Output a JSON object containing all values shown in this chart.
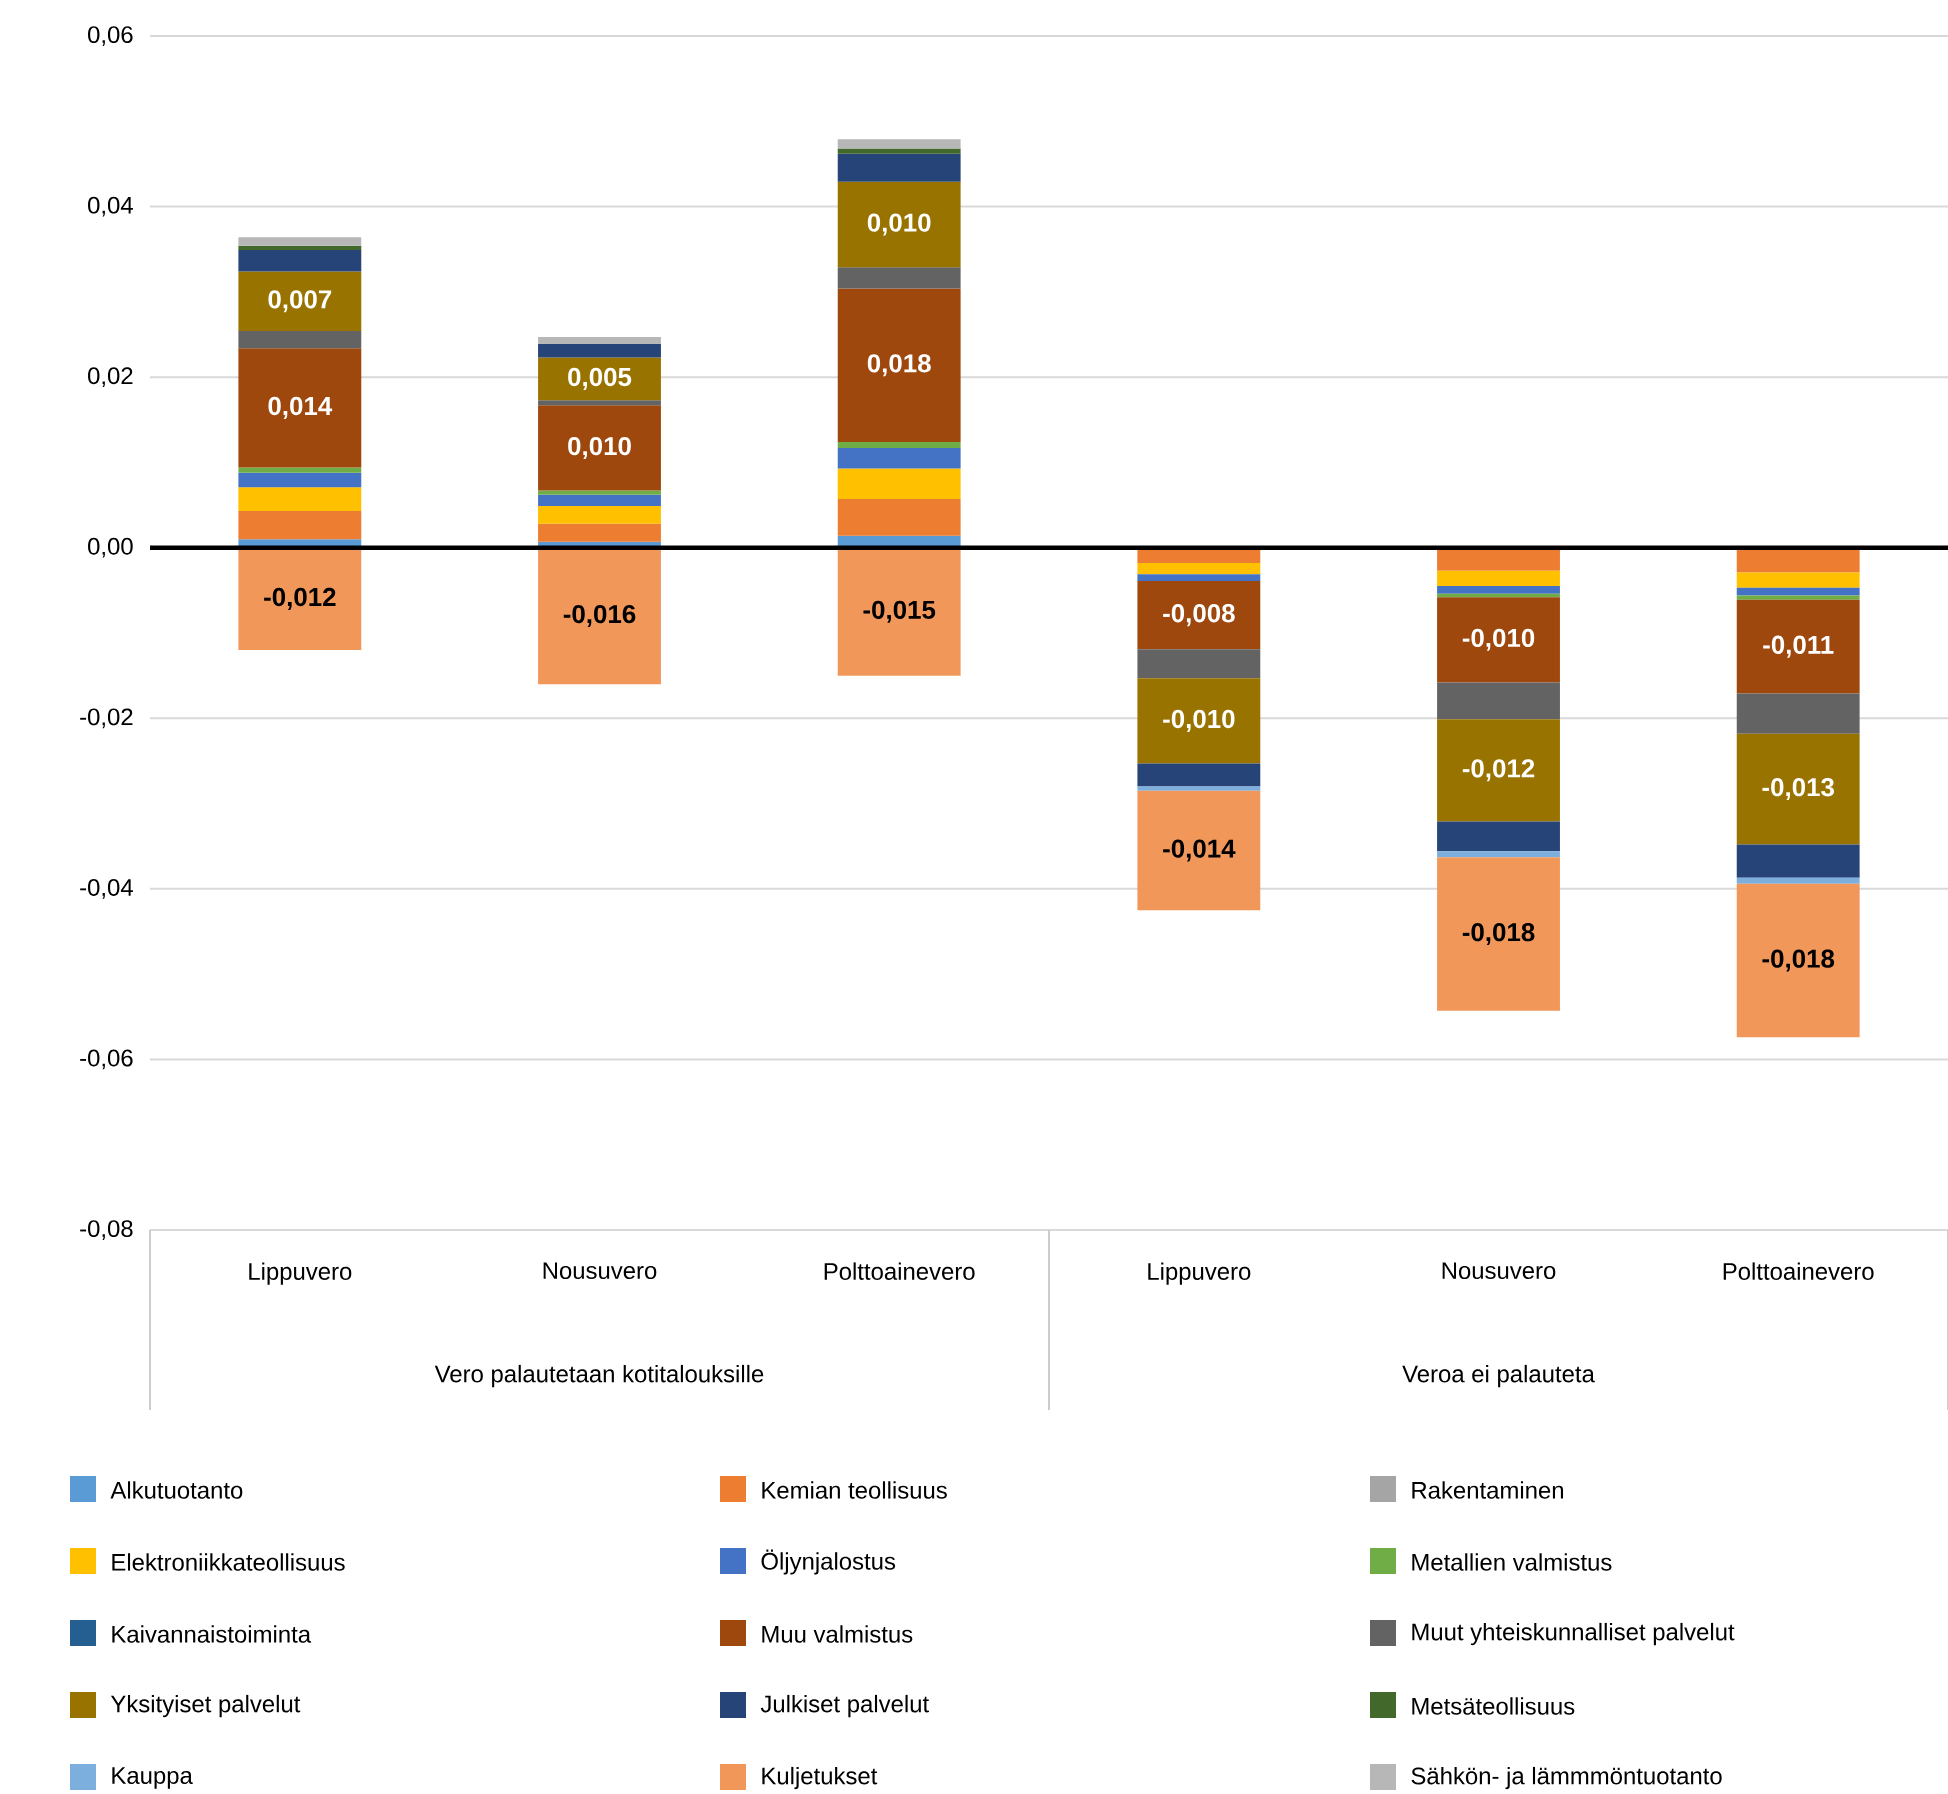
{
  "chart_data": {
    "type": "bar",
    "stacked": true,
    "grid": "y",
    "legend": "bottom",
    "categories": [
      "Lippuvero",
      "Nousuvero",
      "Polttoainevero",
      "Lippuvero",
      "Nousuvero",
      "Polttoainevero"
    ],
    "annotations": [
      "Vero palautetaan kotitalouksille",
      "Veroa ei palauteta"
    ],
    "ylim": [
      -0.08,
      0.06
    ],
    "yticks": [
      {
        "value": -0.08,
        "label": "-0,08"
      },
      {
        "value": -0.06,
        "label": "-0,06"
      },
      {
        "value": -0.04,
        "label": "-0,04"
      },
      {
        "value": -0.02,
        "label": "-0,02"
      },
      {
        "value": 0,
        "label": "0,00"
      },
      {
        "value": 0.02,
        "label": "0,02"
      },
      {
        "value": 0.04,
        "label": "0,04"
      },
      {
        "value": 0.06,
        "label": "0,06"
      }
    ],
    "series": [
      {
        "name": "Alkutuotanto",
        "color": "#5b9bd5",
        "values": [
          0.001,
          0.0007,
          0.0014,
          null,
          null,
          null
        ]
      },
      {
        "name": "Kemian teollisuus",
        "color": "#ed7d31",
        "values": [
          0.0033,
          0.0021,
          0.0043,
          -0.0018,
          -0.0027,
          -0.0029
        ]
      },
      {
        "name": "Rakentaminen",
        "color": "#a5a5a5",
        "values": [
          null,
          null,
          null,
          null,
          null,
          null
        ]
      },
      {
        "name": "Elektroniikkateollisuus",
        "color": "#ffc000",
        "values": [
          0.0028,
          0.0021,
          0.0036,
          -0.0013,
          -0.0018,
          -0.0018
        ]
      },
      {
        "name": "Öljynjalostus",
        "color": "#4472c4",
        "values": [
          0.0017,
          0.0013,
          0.0024,
          -0.0008,
          -0.0009,
          -0.0009
        ]
      },
      {
        "name": "Metallien valmistus",
        "color": "#70ad47",
        "values": [
          0.0006,
          0.0005,
          0.0007,
          null,
          -0.0004,
          -0.0005
        ]
      },
      {
        "name": "Kaivannaistoiminta",
        "color": "#255e91",
        "values": [
          null,
          null,
          null,
          null,
          null,
          null
        ]
      },
      {
        "name": "Muu valmistus",
        "color": "#9e480e",
        "values": [
          0.014,
          0.01,
          0.018,
          -0.008,
          -0.01,
          -0.011
        ],
        "value_labels": [
          "0,014",
          "0,010",
          "0,018",
          "-0,008",
          "-0,010",
          "-0,011"
        ]
      },
      {
        "name": "Muut yhteiskunnalliset palvelut",
        "color": "#636363",
        "values": [
          0.002,
          0.0006,
          0.0025,
          -0.0034,
          -0.0043,
          -0.0047
        ]
      },
      {
        "name": "Yksityiset palvelut",
        "color": "#997300",
        "values": [
          0.007,
          0.005,
          0.01,
          -0.01,
          -0.012,
          -0.013
        ],
        "value_labels": [
          "0,007",
          "0,005",
          "0,010",
          "-0,010",
          "-0,012",
          "-0,013"
        ]
      },
      {
        "name": "Julkiset palvelut",
        "color": "#264478",
        "values": [
          0.0025,
          0.0016,
          0.0033,
          -0.0027,
          -0.0035,
          -0.0039
        ]
      },
      {
        "name": "Metsäteollisuus",
        "color": "#43682b",
        "values": [
          0.0005,
          null,
          0.0006,
          null,
          null,
          null
        ]
      },
      {
        "name": "Kauppa",
        "color": "#7cafdd",
        "values": [
          null,
          null,
          null,
          -0.0005,
          -0.0007,
          -0.0007
        ]
      },
      {
        "name": "Kuljetukset",
        "color": "#f1975a",
        "values": [
          -0.012,
          -0.016,
          -0.015,
          -0.014,
          -0.018,
          -0.018
        ],
        "value_labels": [
          "-0,012",
          "-0,016",
          "-0,015",
          "-0,014",
          "-0,018",
          "-0,018"
        ]
      },
      {
        "name": "Sähkön- ja lämmmöntuotanto",
        "color": "#b7b7b7",
        "values": [
          0.001,
          0.0008,
          0.0011,
          null,
          null,
          null
        ]
      }
    ]
  }
}
